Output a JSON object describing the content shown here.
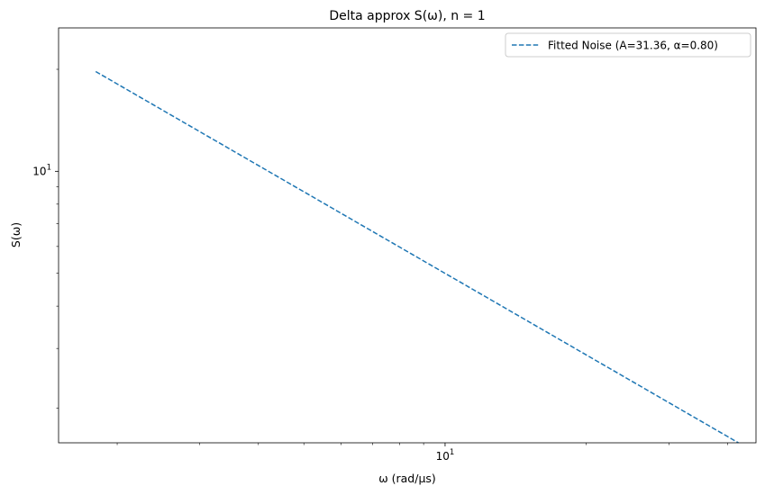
{
  "chart_data": {
    "type": "line",
    "title": "Delta approx S(ω), n = 1",
    "xlabel": "ω (rad/μs)",
    "ylabel": "S(ω)",
    "xscale": "log",
    "yscale": "log",
    "xlim": [
      1.5,
      46
    ],
    "ylim": [
      1.58,
      26.5
    ],
    "x_major_ticks": [
      {
        "value": 10,
        "base": "10",
        "exp": "1"
      }
    ],
    "y_major_ticks": [
      {
        "value": 10,
        "base": "10",
        "exp": "1"
      }
    ],
    "x_minor_ticks": [
      2,
      3,
      4,
      5,
      6,
      7,
      8,
      9,
      20,
      30,
      40
    ],
    "y_minor_ticks": [
      2,
      3,
      4,
      5,
      6,
      7,
      8,
      9,
      20
    ],
    "grid": false,
    "legend_position": "top-right",
    "series": [
      {
        "name": "Fitted Noise (A=31.36, α=0.80)",
        "style": "dashed",
        "color": "#1f77b4",
        "A": 31.36,
        "alpha": 0.8,
        "x": [
          1.8,
          42.2
        ],
        "y": [
          19.7,
          1.58
        ]
      }
    ]
  }
}
